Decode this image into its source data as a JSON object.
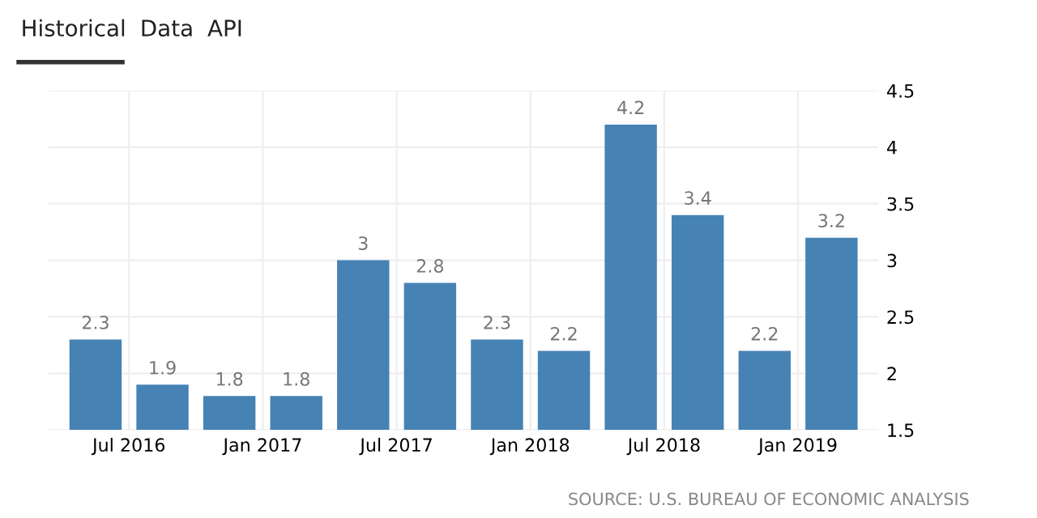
{
  "chart_data": {
    "type": "bar",
    "categories": [
      "Jul 2016",
      null,
      "Jan 2017",
      null,
      "Jul 2017",
      null,
      "Jan 2018",
      null,
      "Jul 2018",
      null,
      "Jan 2019",
      null
    ],
    "values": [
      2.3,
      1.9,
      1.8,
      1.8,
      3,
      2.8,
      2.3,
      2.2,
      4.2,
      3.4,
      2.2,
      3.2
    ],
    "color": "#4682b4",
    "ylim": [
      1.5,
      4.5
    ],
    "yticks": [
      1.5,
      2,
      2.5,
      3,
      3.5,
      4,
      4.5
    ],
    "grid": true,
    "data_labels": true,
    "annotations": [
      "Historical",
      "Data",
      "API",
      "SOURCE: U.S. BUREAU OF ECONOMIC ANALYSIS"
    ]
  }
}
